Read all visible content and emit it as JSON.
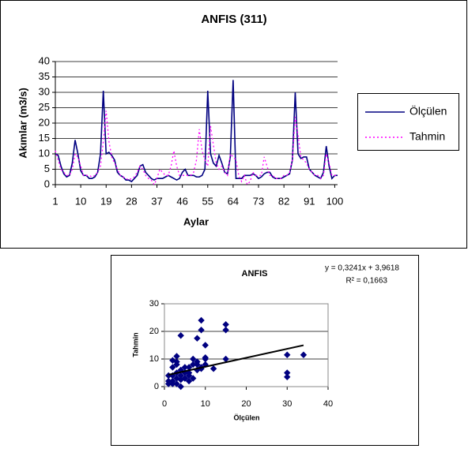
{
  "chart_data": [
    {
      "type": "line",
      "title": "ANFIS (311)",
      "x_label": "Aylar",
      "y_label": "Akımlar (m3/s)",
      "x": [
        1,
        2,
        3,
        4,
        5,
        6,
        7,
        8,
        9,
        10,
        11,
        12,
        13,
        14,
        15,
        16,
        17,
        18,
        19,
        20,
        21,
        22,
        23,
        24,
        25,
        26,
        27,
        28,
        29,
        30,
        31,
        32,
        33,
        34,
        35,
        36,
        37,
        38,
        39,
        40,
        41,
        42,
        43,
        44,
        45,
        46,
        47,
        48,
        49,
        50,
        51,
        52,
        53,
        54,
        55,
        56,
        57,
        58,
        59,
        60,
        61,
        62,
        63,
        64,
        65,
        66,
        67,
        68,
        69,
        70,
        71,
        72,
        73,
        74,
        75,
        76,
        77,
        78,
        79,
        80,
        81,
        82,
        83,
        84,
        85,
        86,
        87,
        88,
        89,
        90,
        91,
        92,
        93,
        94,
        95,
        96,
        97,
        98,
        99,
        100,
        101
      ],
      "series": [
        {
          "name": "Ölçülen",
          "color": "#000080",
          "dash": "solid",
          "values": [
            10,
            9.5,
            6,
            3.5,
            2.5,
            3,
            7,
            14.5,
            10,
            4.5,
            3,
            3,
            2,
            2,
            2.5,
            4,
            10,
            30.5,
            10,
            10.5,
            9.5,
            8,
            4,
            3,
            2.5,
            1.5,
            1.5,
            1,
            2,
            3,
            6,
            6.5,
            4,
            3,
            2,
            1.5,
            2,
            2,
            2,
            2.5,
            3,
            2.5,
            2,
            1.5,
            2,
            4,
            5,
            3,
            3,
            3,
            2.5,
            2.5,
            3,
            5,
            30.5,
            10,
            7,
            6,
            9.5,
            7,
            4,
            3.5,
            9,
            34,
            2,
            2,
            2,
            3,
            3,
            3,
            3.5,
            3,
            2,
            2.5,
            3.5,
            4,
            4,
            2.5,
            2,
            2,
            2,
            2.5,
            3,
            3.5,
            8,
            30,
            10,
            8.5,
            9,
            9,
            5,
            4,
            3,
            2.5,
            2,
            4,
            12.5,
            6,
            2,
            3,
            3
          ]
        },
        {
          "name": "Tahmin",
          "color": "#ff00ff",
          "dash": "dotted",
          "values": [
            11,
            8,
            5,
            4,
            3,
            3,
            5,
            10,
            9,
            6,
            3,
            3,
            3,
            2.5,
            3,
            4,
            6,
            14,
            24,
            14,
            9,
            7,
            5,
            3,
            2.5,
            2,
            1.5,
            2,
            2.5,
            4,
            6,
            5,
            3,
            2,
            1.5,
            0,
            2,
            5,
            4,
            3,
            3,
            6,
            11,
            6,
            3,
            3,
            3,
            3,
            3,
            4,
            8,
            18,
            11,
            8,
            6,
            19,
            13,
            7,
            5,
            6,
            4,
            3,
            10,
            9,
            8,
            3,
            1,
            3,
            0,
            1,
            4,
            3,
            3,
            3,
            9,
            6,
            3,
            3,
            2,
            2,
            2,
            3,
            3,
            4,
            8,
            22,
            16,
            9,
            8,
            7,
            5,
            4,
            3,
            3,
            2,
            3,
            10,
            7,
            3,
            3,
            3
          ]
        }
      ],
      "xlim": [
        1,
        101
      ],
      "xticks": [
        1,
        10,
        19,
        28,
        37,
        46,
        55,
        64,
        73,
        82,
        91,
        100
      ],
      "ylim": [
        0,
        40
      ],
      "yticks": [
        0,
        5,
        10,
        15,
        20,
        25,
        30,
        35,
        40
      ],
      "grid": true,
      "legend": "right"
    },
    {
      "type": "scatter",
      "title": "ANFIS",
      "x_label": "Ölçülen",
      "y_label": "Tahmin",
      "x": [
        30,
        30,
        34,
        30,
        15,
        15,
        15,
        9,
        9,
        8,
        8,
        10,
        10,
        7,
        9,
        4,
        2,
        3,
        4,
        5,
        6,
        7,
        8,
        9,
        10,
        12,
        2,
        1,
        1,
        2,
        3,
        3,
        4,
        5,
        6,
        2,
        3,
        4,
        5,
        7,
        8,
        3,
        2,
        1,
        6,
        4,
        5,
        6,
        10,
        3
      ],
      "values": [
        3.5,
        5,
        11.5,
        11.5,
        22.5,
        20.5,
        10,
        24,
        20.5,
        17.5,
        9,
        15,
        10.5,
        10,
        6.5,
        18.5,
        9.5,
        8,
        6,
        7,
        7,
        8,
        8,
        7,
        8,
        6.5,
        4,
        4,
        2,
        2,
        3,
        5,
        4,
        5,
        4,
        1,
        1,
        0,
        3,
        3,
        6,
        9,
        7,
        1,
        2,
        2.5,
        3,
        5,
        10,
        11
      ],
      "color": "#000080",
      "trendline": {
        "slope": 0.3241,
        "intercept": 3.9618,
        "label": "y = 0,3241x + 3,9618",
        "r2": 0.1663,
        "r2_label": "R² = 0,1663"
      },
      "xlim": [
        0,
        40
      ],
      "xticks": [
        0,
        10,
        20,
        30,
        40
      ],
      "ylim": [
        0,
        30
      ],
      "yticks": [
        0,
        10,
        20,
        30
      ],
      "grid": true
    }
  ]
}
